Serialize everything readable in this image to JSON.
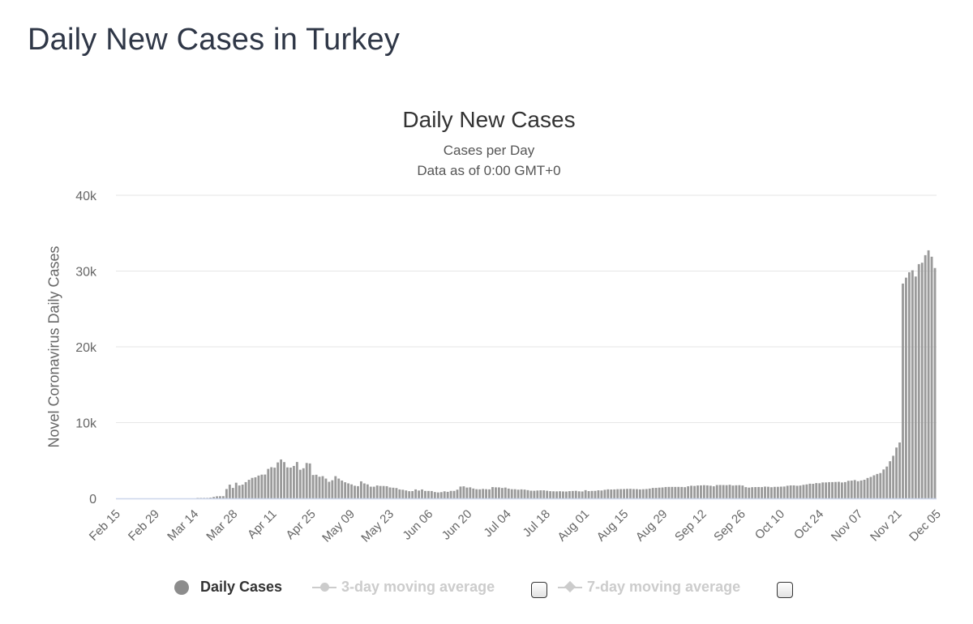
{
  "page": {
    "title": "Daily New Cases in Turkey"
  },
  "chart_data": {
    "type": "bar",
    "title": "Daily New Cases",
    "subtitle": "Cases per Day",
    "subtitle2": "Data as of 0:00 GMT+0",
    "xlabel": "",
    "ylabel": "Novel Coronavirus Daily Cases",
    "ylim": [
      0,
      40000
    ],
    "y_ticks": [
      "0",
      "10k",
      "20k",
      "30k",
      "40k"
    ],
    "x_tick_labels": [
      "Feb 15",
      "Feb 29",
      "Mar 14",
      "Mar 28",
      "Apr 11",
      "Apr 25",
      "May 09",
      "May 23",
      "Jun 06",
      "Jun 20",
      "Jul 04",
      "Jul 18",
      "Aug 01",
      "Aug 15",
      "Aug 29",
      "Sep 12",
      "Sep 26",
      "Oct 10",
      "Oct 24",
      "Nov 07",
      "Nov 21",
      "Dec 05"
    ],
    "x_start": "Feb 15",
    "x_end": "Dec 05",
    "grid": true,
    "legend_position": "bottom",
    "bar_color": "#9a9a9a",
    "series": [
      {
        "name": "Daily Cases",
        "values": [
          0,
          0,
          0,
          0,
          0,
          0,
          0,
          0,
          0,
          0,
          0,
          0,
          0,
          0,
          0,
          0,
          0,
          0,
          0,
          0,
          0,
          0,
          0,
          0,
          0,
          1,
          5,
          12,
          47,
          98,
          191,
          277,
          289,
          293,
          1236,
          1815,
          1381,
          2069,
          1704,
          1815,
          2148,
          2456,
          2704,
          2786,
          3013,
          3135,
          3148,
          3892,
          4117,
          4056,
          4747,
          5138,
          4789,
          4093,
          4062,
          4281,
          4801,
          3783,
          3977,
          4674,
          4611,
          3083,
          3122,
          2861,
          2936,
          2615,
          2188,
          2392,
          2936,
          2615,
          2357,
          2131,
          1983,
          1848,
          1670,
          1614,
          2253,
          1977,
          1848,
          1546,
          1542,
          1704,
          1639,
          1635,
          1610,
          1444,
          1407,
          1368,
          1182,
          1141,
          1048,
          952,
          961,
          1186,
          1035,
          1182,
          987,
          983,
          972,
          839,
          786,
          827,
          930,
          867,
          989,
          987,
          1153,
          1562,
          1592,
          1429,
          1459,
          1304,
          1212,
          1195,
          1248,
          1214,
          1192,
          1492,
          1458,
          1454,
          1374,
          1429,
          1293,
          1214,
          1212,
          1148,
          1192,
          1158,
          1086,
          1016,
          1008,
          1041,
          1065,
          1063,
          1008,
          953,
          936,
          926,
          943,
          919,
          908,
          957,
          979,
          1000,
          935,
          915,
          1083,
          959,
          987,
          996,
          1066,
          1043,
          1132,
          1195,
          1172,
          1185,
          1217,
          1226,
          1233,
          1256,
          1263,
          1232,
          1224,
          1186,
          1212,
          1234,
          1294,
          1377,
          1385,
          1421,
          1444,
          1502,
          1513,
          1516,
          1512,
          1517,
          1509,
          1479,
          1597,
          1671,
          1642,
          1704,
          1716,
          1742,
          1716,
          1671,
          1596,
          1761,
          1767,
          1757,
          1742,
          1791,
          1696,
          1729,
          1742,
          1698,
          1486,
          1427,
          1479,
          1492,
          1502,
          1486,
          1555,
          1534,
          1475,
          1523,
          1527,
          1549,
          1566,
          1672,
          1713,
          1716,
          1668,
          1695,
          1786,
          1846,
          1941,
          1923,
          2023,
          2001,
          2105,
          2106,
          2144,
          2148,
          2165,
          2186,
          2101,
          2152,
          2322,
          2345,
          2419,
          2265,
          2363,
          2459,
          2693,
          2832,
          3045,
          3223,
          3344,
          3819,
          4203,
          4905,
          5624,
          6713,
          7381,
          28351,
          29132,
          29845,
          30103,
          29281,
          30918,
          31102,
          32098,
          32736,
          31896,
          30402
        ]
      }
    ]
  },
  "legend": [
    {
      "label": "Daily Cases",
      "color": "#8c8c8c",
      "active": true,
      "icon": "filled-circle-icon"
    },
    {
      "label": "3-day moving average",
      "color": "#cccccc",
      "active": false,
      "icon": "line-circle-marker-icon"
    },
    {
      "label": "7-day moving average",
      "color": "#cccccc",
      "active": false,
      "icon": "line-diamond-marker-icon"
    }
  ]
}
